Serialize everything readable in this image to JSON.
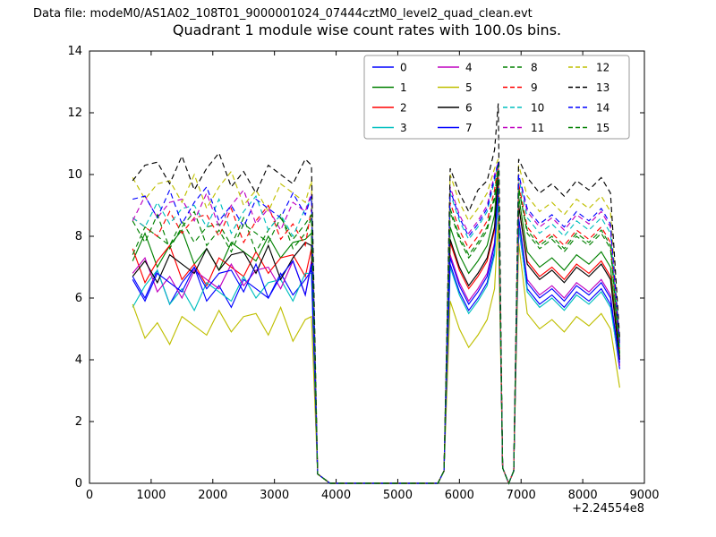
{
  "header": {
    "datafile": "Data file: modeM0/AS1A02_108T01_9000001024_07444cztM0_level2_quad_clean.evt"
  },
  "chart_data": {
    "type": "line",
    "title": "Quadrant 1 module wise count rates with 100.0s bins.",
    "xlim": [
      0,
      9000
    ],
    "ylim": [
      0,
      14
    ],
    "xticks": [
      0,
      1000,
      2000,
      3000,
      4000,
      5000,
      6000,
      7000,
      8000,
      9000
    ],
    "yticks": [
      0,
      2,
      4,
      6,
      8,
      10,
      12,
      14
    ],
    "x_offset_label": "+2.24554e8",
    "grid": false,
    "legend": {
      "location": "upper center-right",
      "columns": 4
    },
    "x": [
      700,
      900,
      1100,
      1300,
      1500,
      1700,
      1900,
      2100,
      2300,
      2500,
      2700,
      2900,
      3100,
      3300,
      3500,
      3600,
      3700,
      3900,
      4200,
      4500,
      4800,
      5100,
      5400,
      5650,
      5750,
      5850,
      6000,
      6150,
      6300,
      6450,
      6570,
      6630,
      6700,
      6800,
      6880,
      6960,
      7100,
      7300,
      7500,
      7700,
      7900,
      8100,
      8300,
      8450,
      8600
    ],
    "series": [
      {
        "label": "0",
        "color": "#0000ff",
        "dash": false,
        "values": [
          6.7,
          6.0,
          6.9,
          5.8,
          6.5,
          7.0,
          5.9,
          6.4,
          5.7,
          6.6,
          6.3,
          6.0,
          6.8,
          6.1,
          6.6,
          6.9,
          0.3,
          0,
          0,
          0,
          0,
          0,
          0,
          0,
          0.4,
          7.1,
          6.2,
          5.6,
          6.0,
          6.5,
          7.5,
          9.3,
          0.5,
          0,
          0.4,
          8.3,
          6.3,
          5.8,
          6.1,
          5.7,
          6.2,
          5.9,
          6.3,
          5.8,
          3.7
        ]
      },
      {
        "label": "1",
        "color": "#008000",
        "dash": false,
        "values": [
          7.2,
          8.1,
          7.0,
          7.7,
          8.2,
          7.1,
          7.6,
          6.9,
          7.8,
          7.5,
          7.2,
          8.0,
          7.3,
          7.8,
          7.9,
          8.1,
          0.3,
          0,
          0,
          0,
          0,
          0,
          0,
          0,
          0.4,
          8.3,
          7.4,
          6.8,
          7.2,
          7.7,
          8.7,
          10.4,
          0.5,
          0,
          0.4,
          9.3,
          7.5,
          7.0,
          7.3,
          6.9,
          7.4,
          7.1,
          7.5,
          7.0,
          4.1
        ]
      },
      {
        "label": "2",
        "color": "#ff0000",
        "dash": false,
        "values": [
          7.6,
          6.5,
          7.2,
          7.7,
          6.6,
          7.1,
          6.4,
          7.3,
          7.0,
          6.7,
          7.5,
          6.8,
          7.3,
          7.4,
          6.7,
          7.6,
          0.3,
          0,
          0,
          0,
          0,
          0,
          0,
          0,
          0.4,
          7.8,
          6.9,
          6.3,
          6.7,
          7.2,
          8.2,
          10.1,
          0.5,
          0,
          0.4,
          9.0,
          7.2,
          6.7,
          7.0,
          6.6,
          7.1,
          6.8,
          7.2,
          6.7,
          4.0
        ]
      },
      {
        "label": "3",
        "color": "#00bfbf",
        "dash": false,
        "values": [
          5.7,
          6.4,
          6.9,
          5.8,
          6.3,
          5.6,
          6.5,
          6.2,
          5.9,
          6.7,
          6.0,
          6.5,
          6.6,
          5.9,
          6.8,
          6.8,
          0.3,
          0,
          0,
          0,
          0,
          0,
          0,
          0,
          0.4,
          7.0,
          6.1,
          5.5,
          5.9,
          6.4,
          7.4,
          9.3,
          0.5,
          0,
          0.4,
          8.4,
          6.2,
          5.7,
          6.0,
          5.6,
          6.1,
          5.8,
          6.2,
          5.7,
          3.8
        ]
      },
      {
        "label": "4",
        "color": "#bf00bf",
        "dash": false,
        "values": [
          6.8,
          7.3,
          6.2,
          6.7,
          6.0,
          6.9,
          6.6,
          6.3,
          7.1,
          6.4,
          6.9,
          7.0,
          6.3,
          7.2,
          6.1,
          7.2,
          0.3,
          0,
          0,
          0,
          0,
          0,
          0,
          0,
          0.4,
          7.4,
          6.5,
          5.9,
          6.3,
          6.8,
          7.8,
          9.6,
          0.5,
          0,
          0.4,
          8.6,
          6.6,
          6.1,
          6.4,
          6.0,
          6.5,
          6.2,
          6.6,
          6.1,
          3.8
        ]
      },
      {
        "label": "5",
        "color": "#bfbf00",
        "dash": false,
        "values": [
          5.8,
          4.7,
          5.2,
          4.5,
          5.4,
          5.1,
          4.8,
          5.6,
          4.9,
          5.4,
          5.5,
          4.8,
          5.7,
          4.6,
          5.3,
          5.4,
          0.3,
          0,
          0,
          0,
          0,
          0,
          0,
          0,
          0.4,
          5.9,
          5.0,
          4.4,
          4.8,
          5.3,
          6.3,
          8.6,
          0.5,
          0,
          0.4,
          7.8,
          5.5,
          5.0,
          5.3,
          4.9,
          5.4,
          5.1,
          5.5,
          5.0,
          3.1
        ]
      },
      {
        "label": "6",
        "color": "#000000",
        "dash": false,
        "values": [
          6.7,
          7.2,
          6.5,
          7.4,
          7.1,
          6.8,
          7.6,
          6.9,
          7.4,
          7.5,
          6.8,
          7.7,
          6.6,
          7.3,
          7.8,
          7.7,
          0.3,
          0,
          0,
          0,
          0,
          0,
          0,
          0,
          0.4,
          7.9,
          7.0,
          6.4,
          6.8,
          7.3,
          8.3,
          10.0,
          0.5,
          0,
          0.4,
          9.0,
          7.1,
          6.6,
          6.9,
          6.5,
          7.0,
          6.7,
          7.1,
          6.6,
          4.0
        ]
      },
      {
        "label": "7",
        "color": "#0000ff",
        "dash": false,
        "values": [
          6.6,
          5.9,
          6.8,
          6.5,
          6.2,
          7.0,
          6.3,
          6.8,
          6.9,
          6.2,
          7.1,
          6.0,
          6.7,
          7.2,
          6.1,
          7.1,
          0.3,
          0,
          0,
          0,
          0,
          0,
          0,
          0,
          0.4,
          7.3,
          6.4,
          5.8,
          6.2,
          6.7,
          7.7,
          9.6,
          0.5,
          0,
          0.4,
          8.6,
          6.5,
          6.0,
          6.3,
          5.9,
          6.4,
          6.1,
          6.5,
          6.0,
          3.9
        ]
      },
      {
        "label": "8",
        "color": "#008000",
        "dash": true,
        "values": [
          7.4,
          8.3,
          8.0,
          7.7,
          8.5,
          7.8,
          8.3,
          8.4,
          7.7,
          8.6,
          7.5,
          8.2,
          8.7,
          7.6,
          8.1,
          8.6,
          0.3,
          0,
          0,
          0,
          0,
          0,
          0,
          0,
          0.4,
          8.8,
          7.9,
          7.3,
          7.7,
          8.2,
          9.2,
          10.4,
          0.5,
          0,
          0.4,
          9.6,
          8.1,
          7.6,
          7.9,
          7.5,
          8.0,
          7.7,
          8.1,
          7.6,
          4.2
        ]
      },
      {
        "label": "9",
        "color": "#ff0000",
        "dash": true,
        "values": [
          8.6,
          8.3,
          8.0,
          8.8,
          8.1,
          8.6,
          8.7,
          8.0,
          8.9,
          7.8,
          8.5,
          9.0,
          7.9,
          8.4,
          7.7,
          8.9,
          0.3,
          0,
          0,
          0,
          0,
          0,
          0,
          0,
          0.4,
          9.1,
          8.2,
          7.6,
          8.0,
          8.5,
          9.5,
          10.4,
          0.5,
          0,
          0.4,
          9.7,
          8.3,
          7.8,
          8.1,
          7.7,
          8.2,
          7.9,
          8.3,
          7.8,
          4.3
        ]
      },
      {
        "label": "10",
        "color": "#00bfbf",
        "dash": true,
        "values": [
          8.6,
          8.3,
          9.1,
          8.4,
          8.9,
          9.0,
          8.3,
          9.2,
          8.1,
          8.8,
          9.3,
          8.2,
          8.7,
          8.0,
          8.9,
          9.2,
          0.3,
          0,
          0,
          0,
          0,
          0,
          0,
          0,
          0.4,
          9.4,
          8.5,
          7.9,
          8.3,
          8.8,
          9.8,
          10.4,
          0.5,
          0,
          0.4,
          9.9,
          8.6,
          8.1,
          8.4,
          8.0,
          8.5,
          8.2,
          8.6,
          8.1,
          4.4
        ]
      },
      {
        "label": "11",
        "color": "#bf00bf",
        "dash": true,
        "values": [
          8.5,
          9.3,
          8.6,
          9.1,
          9.2,
          8.5,
          9.4,
          8.3,
          9.0,
          9.5,
          8.4,
          8.9,
          8.2,
          9.1,
          8.8,
          9.4,
          0.3,
          0,
          0,
          0,
          0,
          0,
          0,
          0,
          0.4,
          9.6,
          8.7,
          8.1,
          8.5,
          9.0,
          10.0,
          10.4,
          0.5,
          0,
          0.4,
          10.0,
          8.8,
          8.3,
          8.6,
          8.2,
          8.7,
          8.4,
          8.8,
          8.3,
          4.4
        ]
      },
      {
        "label": "12",
        "color": "#bfbf00",
        "dash": true,
        "values": [
          9.9,
          9.2,
          9.7,
          9.8,
          9.1,
          10.0,
          8.9,
          9.6,
          10.1,
          9.0,
          9.5,
          8.8,
          9.7,
          9.4,
          9.1,
          9.8,
          0.3,
          0,
          0,
          0,
          0,
          0,
          0,
          0,
          0.4,
          10.0,
          9.1,
          8.5,
          8.9,
          9.4,
          10.2,
          10.5,
          0.5,
          0,
          0.4,
          10.3,
          9.3,
          8.8,
          9.1,
          8.7,
          9.2,
          8.9,
          9.3,
          8.8,
          4.6
        ]
      },
      {
        "label": "13",
        "color": "#000000",
        "dash": true,
        "values": [
          9.8,
          10.3,
          10.4,
          9.7,
          10.6,
          9.5,
          10.2,
          10.7,
          9.6,
          10.1,
          9.4,
          10.3,
          10.0,
          9.7,
          10.5,
          10.3,
          0.3,
          0,
          0,
          0,
          0,
          0,
          0,
          0,
          0.4,
          10.2,
          9.4,
          8.8,
          9.5,
          9.8,
          10.8,
          12.3,
          0.5,
          0,
          0.4,
          10.5,
          9.9,
          9.4,
          9.7,
          9.3,
          9.8,
          9.5,
          9.9,
          9.4,
          4.7
        ]
      },
      {
        "label": "14",
        "color": "#0000ff",
        "dash": true,
        "values": [
          9.2,
          9.3,
          8.6,
          9.5,
          8.4,
          9.1,
          9.6,
          8.5,
          9.0,
          8.3,
          9.2,
          8.9,
          8.6,
          9.4,
          8.7,
          9.3,
          0.3,
          0,
          0,
          0,
          0,
          0,
          0,
          0,
          0.4,
          9.5,
          8.6,
          8.0,
          8.4,
          8.9,
          9.9,
          10.4,
          0.5,
          0,
          0.4,
          10.0,
          8.9,
          8.4,
          8.7,
          8.3,
          8.8,
          8.5,
          8.9,
          8.4,
          4.5
        ]
      },
      {
        "label": "15",
        "color": "#008000",
        "dash": true,
        "values": [
          8.5,
          7.8,
          8.7,
          7.6,
          8.3,
          8.8,
          7.7,
          8.2,
          7.5,
          8.4,
          8.1,
          7.8,
          8.6,
          7.9,
          8.4,
          8.7,
          0.3,
          0,
          0,
          0,
          0,
          0,
          0,
          0,
          0.4,
          8.9,
          8.0,
          7.4,
          7.8,
          8.3,
          9.3,
          10.3,
          0.5,
          0,
          0.4,
          9.5,
          8.2,
          7.7,
          8.0,
          7.6,
          8.1,
          7.8,
          8.2,
          7.7,
          4.2
        ]
      }
    ]
  }
}
